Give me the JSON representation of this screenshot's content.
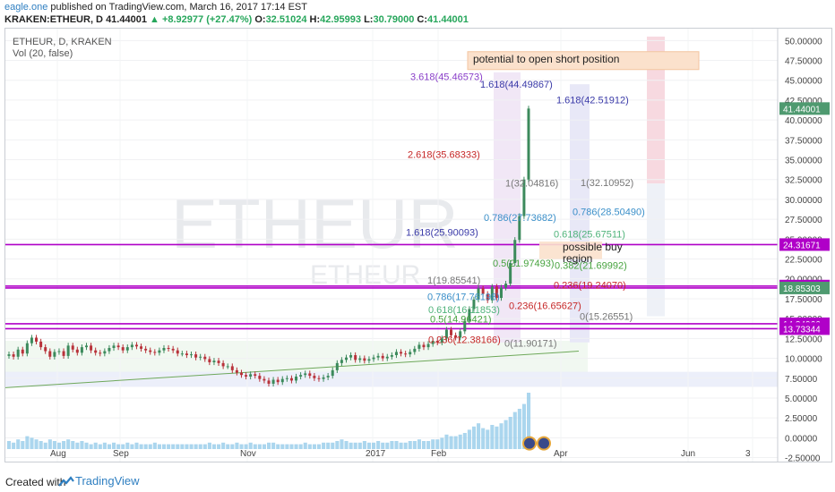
{
  "header": {
    "author": "eagle.one",
    "published_text": "published on TradingView.com, March 16, 2017 17:14 EST",
    "symbol": "KRAKEN:ETHEUR, D",
    "last": "41.44001",
    "change": "▲ +8.92977 (+27.47%)",
    "o_label": "O:",
    "o_value": "32.51024",
    "h_label": "H:",
    "h_value": "42.95993",
    "l_label": "L:",
    "l_value": "30.79000",
    "c_label": "C:",
    "c_value": "41.44001"
  },
  "chart_data": {
    "type": "candlestick",
    "title": "ETHEUR, D, KRAKEN",
    "indicator": "Vol (20, false)",
    "watermark_large": "ETHEUR",
    "watermark_small": "ETHEUR",
    "x_ticks": [
      "Aug",
      "Sep",
      "Nov",
      "2017",
      "Feb",
      "Apr",
      "Jun",
      "3"
    ],
    "y_ticks": [
      -2.5,
      0,
      2.5,
      5,
      7.5,
      10,
      12.5,
      15,
      17.5,
      20,
      22.5,
      25,
      27.5,
      30,
      32.5,
      35,
      37.5,
      40,
      42.5,
      45,
      47.5,
      50
    ],
    "y_tick_labels": [
      "-2.50000",
      "0.00000",
      "2.50000",
      "5.00000",
      "7.50000",
      "10.00000",
      "12.50000",
      "15.00000",
      "17.50000",
      "20.00000",
      "22.50000",
      "25.00000",
      "27.50000",
      "30.00000",
      "32.50000",
      "35.00000",
      "37.50000",
      "40.00000",
      "42.50000",
      "45.00000",
      "47.50000",
      "50.00000"
    ],
    "ylim": [
      -3,
      51.5
    ],
    "price_badges": [
      {
        "value": 41.44001,
        "label": "41.44001",
        "color": "#4f9a70"
      },
      {
        "value": 24.31671,
        "label": "24.31671",
        "color": "#b000c8"
      },
      {
        "value": 19.09521,
        "label": "19.09521",
        "color": "#b000c8"
      },
      {
        "value": 18.85303,
        "label": "18.85303",
        "color": "#4f9a70"
      },
      {
        "value": 14.34966,
        "label": "14.34966",
        "color": "#b000c8"
      },
      {
        "value": 13.73344,
        "label": "13.73344",
        "color": "#b000c8"
      }
    ],
    "horizontal_lines": [
      {
        "value": 24.31671,
        "color": "#b000c8"
      },
      {
        "value": 19.09521,
        "color": "#b000c8"
      },
      {
        "value": 18.85303,
        "color": "#b000c8"
      },
      {
        "value": 14.34966,
        "color": "#b000c8"
      },
      {
        "value": 13.73344,
        "color": "#b000c8"
      }
    ],
    "fib_labels": [
      {
        "text": "3.618(45.46573)",
        "value": 45.47,
        "color": "#8a3fc9"
      },
      {
        "text": "1.618(44.49867)",
        "value": 44.5,
        "color": "#3a3aa8"
      },
      {
        "text": "1.618(42.51912)",
        "value": 42.52,
        "color": "#3a3aa8"
      },
      {
        "text": "2.618(35.68333)",
        "value": 35.68,
        "color": "#c62828"
      },
      {
        "text": "1(32.04816)",
        "value": 32.05,
        "color": "#777777"
      },
      {
        "text": "1(32.10952)",
        "value": 32.11,
        "color": "#777777"
      },
      {
        "text": "0.786(27.73682)",
        "value": 27.74,
        "color": "#3a8fc9"
      },
      {
        "text": "0.786(28.50490)",
        "value": 28.5,
        "color": "#3a8fc9"
      },
      {
        "text": "1.618(25.90093)",
        "value": 25.9,
        "color": "#3a3aa8"
      },
      {
        "text": "0.618(25.67511)",
        "value": 25.68,
        "color": "#4fb37a"
      },
      {
        "text": "0.5(21.97493)",
        "value": 21.97,
        "color": "#47a33f"
      },
      {
        "text": "0.382(21.69992)",
        "value": 21.7,
        "color": "#47a33f"
      },
      {
        "text": "1(19.85541)",
        "value": 19.86,
        "color": "#777777"
      },
      {
        "text": "0.236(19.24070)",
        "value": 19.24,
        "color": "#c62828"
      },
      {
        "text": "0.786(17.76198)",
        "value": 17.76,
        "color": "#3a8fc9"
      },
      {
        "text": "0.236(16.65627)",
        "value": 16.66,
        "color": "#c62828"
      },
      {
        "text": "0.618(16.11853)",
        "value": 16.12,
        "color": "#4fb37a"
      },
      {
        "text": "0(15.26551)",
        "value": 15.27,
        "color": "#777777"
      },
      {
        "text": "0.5(14.96421)",
        "value": 14.96,
        "color": "#47a33f"
      },
      {
        "text": "0.236(12.38166)",
        "value": 12.38,
        "color": "#c62828"
      },
      {
        "text": "0(11.90171)",
        "value": 11.9,
        "color": "#777777"
      }
    ],
    "annotations": [
      {
        "text": "potential to open short position"
      },
      {
        "text": "possible buy"
      },
      {
        "text": "region"
      }
    ],
    "candles_close": [
      10.5,
      10.2,
      11.1,
      10.6,
      11.9,
      12.6,
      12.1,
      11.4,
      10.9,
      10.2,
      10.8,
      10.9,
      10.3,
      11.6,
      11.1,
      10.7,
      11.4,
      11.6,
      11.0,
      10.7,
      10.6,
      10.9,
      11.3,
      11.6,
      11.4,
      11.0,
      11.4,
      11.7,
      11.5,
      11.2,
      11.0,
      10.8,
      10.7,
      11.0,
      11.3,
      11.2,
      11.0,
      10.6,
      10.6,
      10.4,
      10.5,
      10.1,
      10.2,
      9.9,
      9.5,
      9.7,
      9.4,
      9.0,
      9.0,
      8.5,
      8.2,
      7.9,
      7.7,
      8.0,
      7.8,
      7.4,
      7.2,
      6.8,
      7.3,
      7.0,
      7.4,
      7.5,
      7.2,
      7.7,
      7.9,
      8.1,
      7.8,
      7.5,
      7.4,
      7.6,
      7.8,
      8.5,
      9.4,
      9.8,
      10.1,
      10.4,
      9.8,
      10.0,
      9.7,
      9.9,
      10.1,
      10.3,
      10.0,
      10.2,
      10.4,
      10.8,
      10.6,
      10.5,
      10.8,
      11.2,
      11.7,
      11.4,
      11.8,
      12.2,
      12.0,
      12.5,
      13.6,
      12.9,
      12.6,
      13.4,
      14.7,
      16.2,
      17.4,
      18.8,
      18.1,
      17.3,
      19.0,
      17.6,
      18.9,
      19.4,
      22.0,
      24.9,
      27.9,
      32.5,
      41.44
    ],
    "volume": [
      0.5,
      0.4,
      0.6,
      0.5,
      0.8,
      0.7,
      0.6,
      0.5,
      0.4,
      0.6,
      0.5,
      0.4,
      0.5,
      0.6,
      0.5,
      0.4,
      0.5,
      0.4,
      0.3,
      0.4,
      0.3,
      0.4,
      0.3,
      0.4,
      0.3,
      0.3,
      0.4,
      0.3,
      0.4,
      0.3,
      0.3,
      0.3,
      0.4,
      0.3,
      0.3,
      0.3,
      0.3,
      0.3,
      0.3,
      0.3,
      0.3,
      0.3,
      0.3,
      0.3,
      0.4,
      0.3,
      0.3,
      0.4,
      0.3,
      0.3,
      0.4,
      0.3,
      0.3,
      0.4,
      0.3,
      0.3,
      0.3,
      0.4,
      0.4,
      0.3,
      0.3,
      0.3,
      0.3,
      0.3,
      0.3,
      0.4,
      0.3,
      0.3,
      0.3,
      0.4,
      0.4,
      0.4,
      0.5,
      0.6,
      0.5,
      0.4,
      0.4,
      0.4,
      0.5,
      0.4,
      0.4,
      0.5,
      0.4,
      0.4,
      0.5,
      0.5,
      0.4,
      0.4,
      0.5,
      0.5,
      0.6,
      0.5,
      0.5,
      0.6,
      0.6,
      0.7,
      0.9,
      0.8,
      0.8,
      0.9,
      1.0,
      1.2,
      1.4,
      1.6,
      1.3,
      1.2,
      1.5,
      1.4,
      1.6,
      1.8,
      2.0,
      2.3,
      2.5,
      2.8,
      3.5
    ]
  },
  "footer": {
    "created_with": "Created with",
    "brand": "TradingView"
  }
}
